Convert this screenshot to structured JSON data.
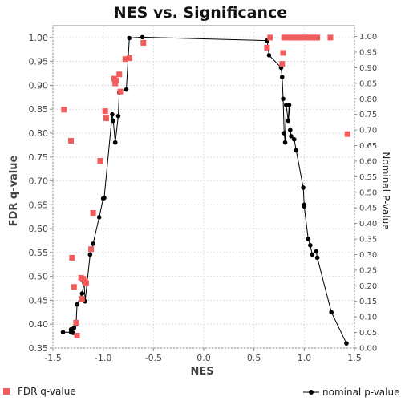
{
  "chart_data": {
    "type": "scatter",
    "title": "NES vs. Significance",
    "xlabel": "NES",
    "ylabel": "FDR q-value",
    "y2label": "Nominal P-value",
    "xlim": [
      -1.5,
      1.5
    ],
    "ylim": [
      0.35,
      1.025
    ],
    "y2lim": [
      0.0,
      1.035
    ],
    "x_ticks": [
      -1.5,
      -1.0,
      -0.5,
      0.0,
      0.5,
      1.0,
      1.5
    ],
    "y_ticks": [
      0.35,
      0.4,
      0.45,
      0.5,
      0.55,
      0.6,
      0.65,
      0.7,
      0.75,
      0.8,
      0.85,
      0.9,
      0.95,
      1.0
    ],
    "y2_ticks": [
      0.0,
      0.05,
      0.1,
      0.15,
      0.2,
      0.25,
      0.3,
      0.35,
      0.4,
      0.45,
      0.5,
      0.55,
      0.6,
      0.65,
      0.7,
      0.75,
      0.8,
      0.85,
      0.9,
      0.95,
      1.0
    ],
    "grid": true,
    "legend_position": "bottom",
    "series": [
      {
        "name": "FDR q-value",
        "axis": "left",
        "style": "square-markers",
        "color": "#f25c5c",
        "points": [
          [
            -1.39,
            0.849
          ],
          [
            -1.32,
            0.784
          ],
          [
            -1.31,
            0.539
          ],
          [
            -1.29,
            0.478
          ],
          [
            -1.27,
            0.403
          ],
          [
            -1.26,
            0.376
          ],
          [
            -1.22,
            0.497
          ],
          [
            -1.21,
            0.453
          ],
          [
            -1.2,
            0.495
          ],
          [
            -1.18,
            0.49
          ],
          [
            -1.17,
            0.486
          ],
          [
            -1.12,
            0.557
          ],
          [
            -1.1,
            0.633
          ],
          [
            -1.03,
            0.742
          ],
          [
            -0.98,
            0.846
          ],
          [
            -0.97,
            0.831
          ],
          [
            -0.89,
            0.914
          ],
          [
            -0.88,
            0.904
          ],
          [
            -0.87,
            0.91
          ],
          [
            -0.84,
            0.923
          ],
          [
            -0.83,
            0.887
          ],
          [
            -0.78,
            0.955
          ],
          [
            -0.74,
            0.957
          ],
          [
            -0.6,
            0.989
          ],
          [
            0.63,
            0.979
          ],
          [
            0.66,
            1.0
          ],
          [
            0.78,
            0.945
          ],
          [
            0.79,
            0.968
          ],
          [
            0.8,
            1.0
          ],
          [
            0.83,
            1.0
          ],
          [
            0.86,
            1.0
          ],
          [
            0.89,
            1.0
          ],
          [
            0.92,
            1.0
          ],
          [
            0.95,
            1.0
          ],
          [
            0.97,
            1.0
          ],
          [
            1.0,
            1.0
          ],
          [
            1.02,
            1.0
          ],
          [
            1.04,
            1.0
          ],
          [
            1.07,
            1.0
          ],
          [
            1.1,
            1.0
          ],
          [
            1.13,
            1.0
          ],
          [
            1.26,
            1.0
          ],
          [
            1.43,
            0.798
          ]
        ]
      },
      {
        "name": "nominal p-value",
        "axis": "right",
        "style": "line-with-markers",
        "color": "#000000",
        "points": [
          [
            -1.4,
            0.051
          ],
          [
            -1.32,
            0.051
          ],
          [
            -1.32,
            0.06
          ],
          [
            -1.3,
            0.049
          ],
          [
            -1.29,
            0.065
          ],
          [
            -1.27,
            0.076
          ],
          [
            -1.26,
            0.14
          ],
          [
            -1.21,
            0.175
          ],
          [
            -1.19,
            0.21
          ],
          [
            -1.18,
            0.15
          ],
          [
            -1.13,
            0.3
          ],
          [
            -1.1,
            0.335
          ],
          [
            -1.04,
            0.42
          ],
          [
            -1.0,
            0.48
          ],
          [
            -0.99,
            0.482
          ],
          [
            -0.91,
            0.75
          ],
          [
            -0.9,
            0.73
          ],
          [
            -0.88,
            0.66
          ],
          [
            -0.85,
            0.745
          ],
          [
            -0.84,
            0.82
          ],
          [
            -0.77,
            0.83
          ],
          [
            -0.74,
            0.995
          ],
          [
            -0.61,
            0.998
          ],
          [
            0.63,
            0.987
          ],
          [
            0.65,
            0.94
          ],
          [
            0.77,
            0.9
          ],
          [
            0.78,
            0.87
          ],
          [
            0.79,
            0.8
          ],
          [
            0.8,
            0.69
          ],
          [
            0.81,
            0.66
          ],
          [
            0.82,
            0.78
          ],
          [
            0.84,
            0.73
          ],
          [
            0.85,
            0.78
          ],
          [
            0.86,
            0.7
          ],
          [
            0.87,
            0.68
          ],
          [
            0.9,
            0.67
          ],
          [
            0.92,
            0.635
          ],
          [
            0.99,
            0.515
          ],
          [
            1.0,
            0.46
          ],
          [
            1.0,
            0.455
          ],
          [
            1.04,
            0.35
          ],
          [
            1.06,
            0.33
          ],
          [
            1.08,
            0.3
          ],
          [
            1.12,
            0.31
          ],
          [
            1.13,
            0.29
          ],
          [
            1.27,
            0.115
          ],
          [
            1.42,
            0.015
          ]
        ]
      }
    ]
  }
}
